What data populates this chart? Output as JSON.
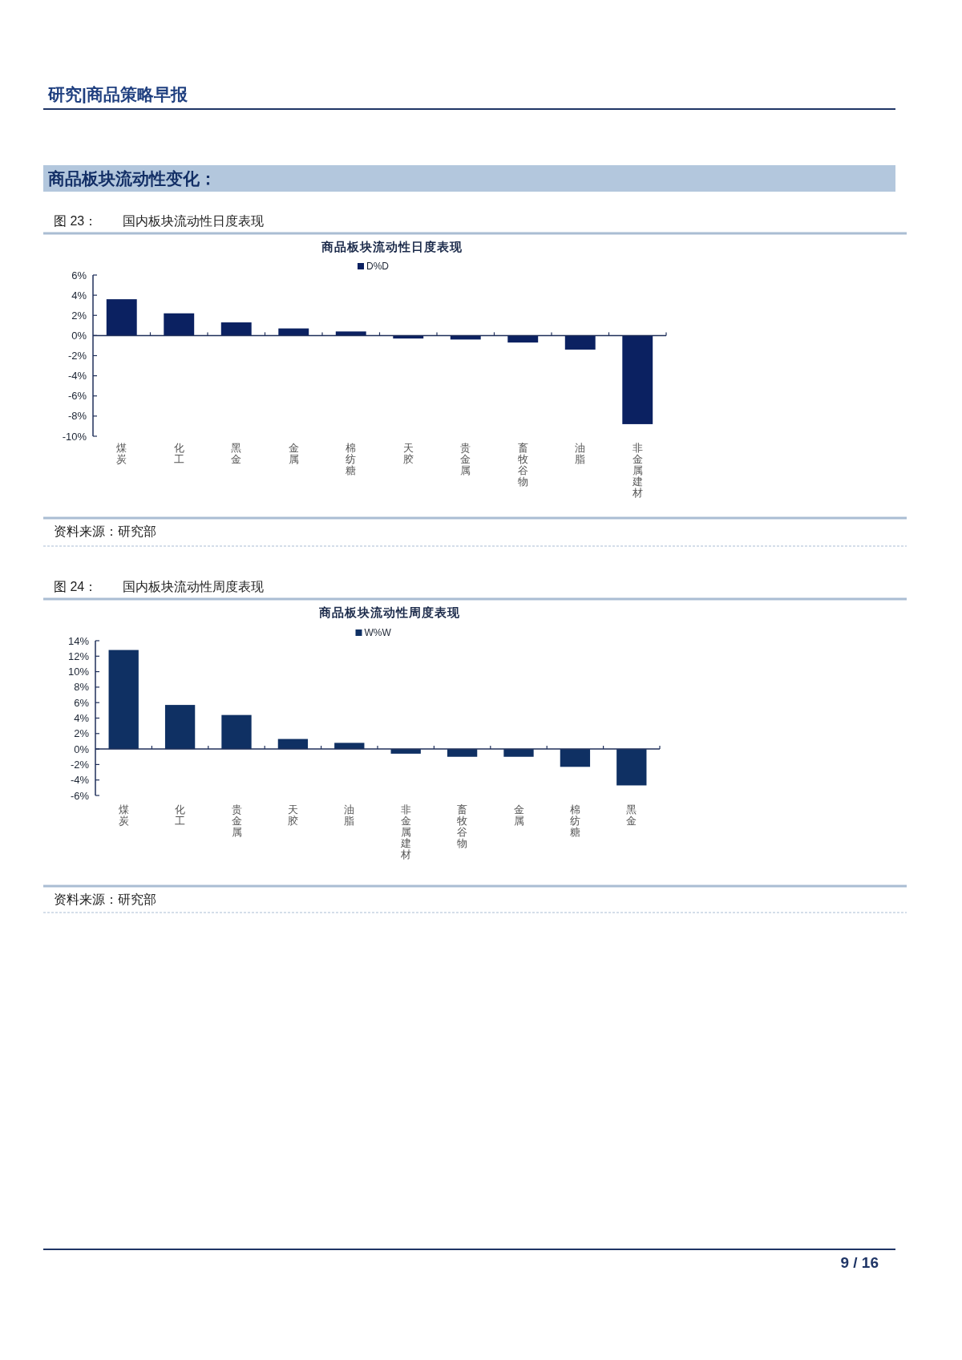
{
  "chart_data": [
    {
      "type": "bar",
      "title": "商品板块流动性日度表现",
      "categories": [
        "煤炭",
        "化工",
        "黑金",
        "金属",
        "棉纺糖",
        "天胶",
        "贵金属",
        "畜牧谷物",
        "油脂",
        "非金属建材"
      ],
      "series": [
        {
          "name": "D%D",
          "color": "#0b2161",
          "values": [
            3.6,
            2.2,
            1.3,
            0.7,
            0.4,
            -0.3,
            -0.4,
            -0.7,
            -1.4,
            -8.8
          ]
        }
      ],
      "ylim": [
        -10,
        6
      ],
      "yticks": [
        {
          "value": -10,
          "label": "-10%"
        },
        {
          "value": -8,
          "label": "-8%"
        },
        {
          "value": -6,
          "label": "-6%"
        },
        {
          "value": -4,
          "label": "-4%"
        },
        {
          "value": -2,
          "label": "-2%"
        },
        {
          "value": 0,
          "label": "0%"
        },
        {
          "value": 2,
          "label": "2%"
        },
        {
          "value": 4,
          "label": "4%"
        },
        {
          "value": 6,
          "label": "6%"
        }
      ],
      "legend": "top",
      "annotations": [
        "研究|商品策略早报",
        "商品板块流动性变化：",
        "图 23：",
        "国内板块流动性日度表现",
        "资料来源：研究部"
      ]
    },
    {
      "type": "bar",
      "title": "商品板块流动性周度表现",
      "categories": [
        "煤炭",
        "化工",
        "贵金属",
        "天胶",
        "油脂",
        "非金属建材",
        "畜牧谷物",
        "金属",
        "棉纺糖",
        "黑金"
      ],
      "series": [
        {
          "name": "W%W",
          "color": "#0f3063",
          "values": [
            12.8,
            5.7,
            4.4,
            1.3,
            0.8,
            -0.6,
            -1.0,
            -1.0,
            -2.3,
            -4.7
          ]
        }
      ],
      "ylim": [
        -6,
        14
      ],
      "yticks": [
        {
          "value": -6,
          "label": "-6%"
        },
        {
          "value": -4,
          "label": "-4%"
        },
        {
          "value": -2,
          "label": "-2%"
        },
        {
          "value": 0,
          "label": "0%"
        },
        {
          "value": 2,
          "label": "2%"
        },
        {
          "value": 4,
          "label": "4%"
        },
        {
          "value": 6,
          "label": "6%"
        },
        {
          "value": 8,
          "label": "8%"
        },
        {
          "value": 10,
          "label": "10%"
        },
        {
          "value": 12,
          "label": "12%"
        },
        {
          "value": 14,
          "label": "14%"
        }
      ],
      "legend": "top",
      "annotations": [
        "图 24：",
        "国内板块流动性周度表现",
        "资料来源：研究部",
        "9 / 16"
      ]
    }
  ]
}
